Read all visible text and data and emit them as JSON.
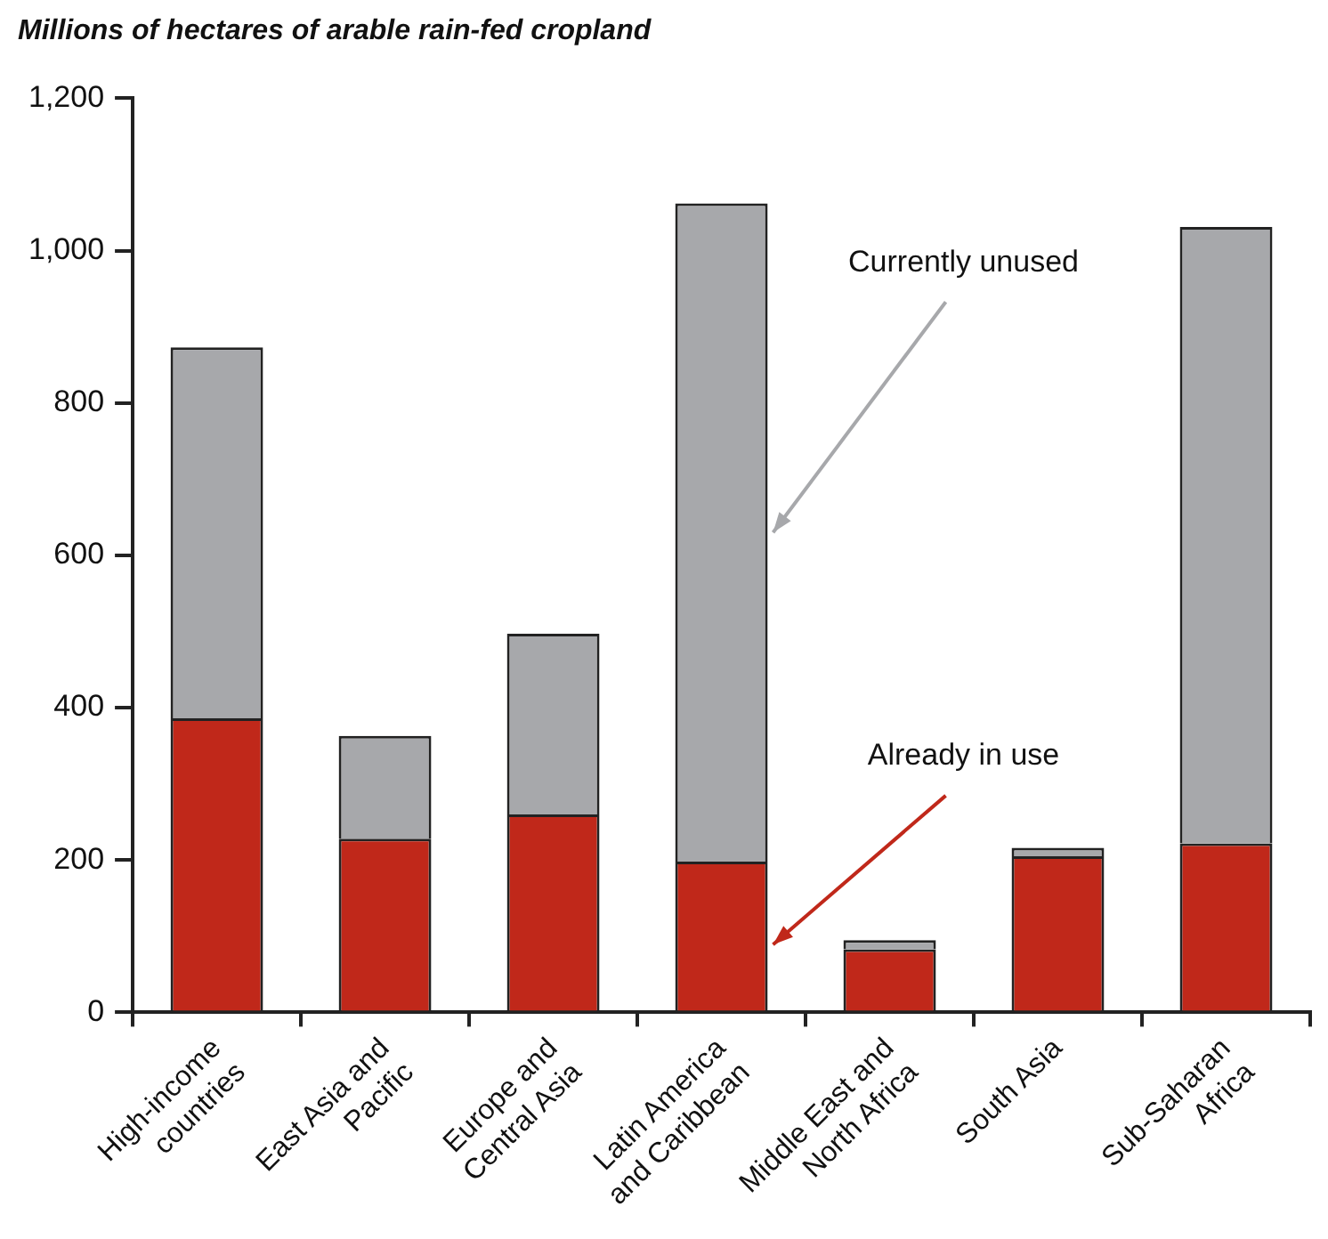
{
  "chart_data": {
    "type": "bar",
    "stacked": true,
    "title": "Millions of hectares of arable rain-fed cropland",
    "categories": [
      "High-income countries",
      "East Asia and Pacific",
      "Europe and Central Asia",
      "Latin America and Caribbean",
      "Middle East and North Africa",
      "South Asia",
      "Sub-Saharan Africa"
    ],
    "series": [
      {
        "name": "Already in use",
        "color": "#c0281a",
        "values": [
          386,
          228,
          260,
          198,
          83,
          205,
          222
        ]
      },
      {
        "name": "Currently unused",
        "color": "#a7a8ab",
        "values": [
          487,
          135,
          237,
          864,
          12,
          11,
          809
        ]
      }
    ],
    "ylim": [
      0,
      1200
    ],
    "yticks": [
      0,
      200,
      400,
      600,
      800,
      {
        "value": 1000,
        "label": "1,000"
      },
      {
        "value": 1200,
        "label": "1,200"
      }
    ],
    "grid": false,
    "legend": false
  }
}
